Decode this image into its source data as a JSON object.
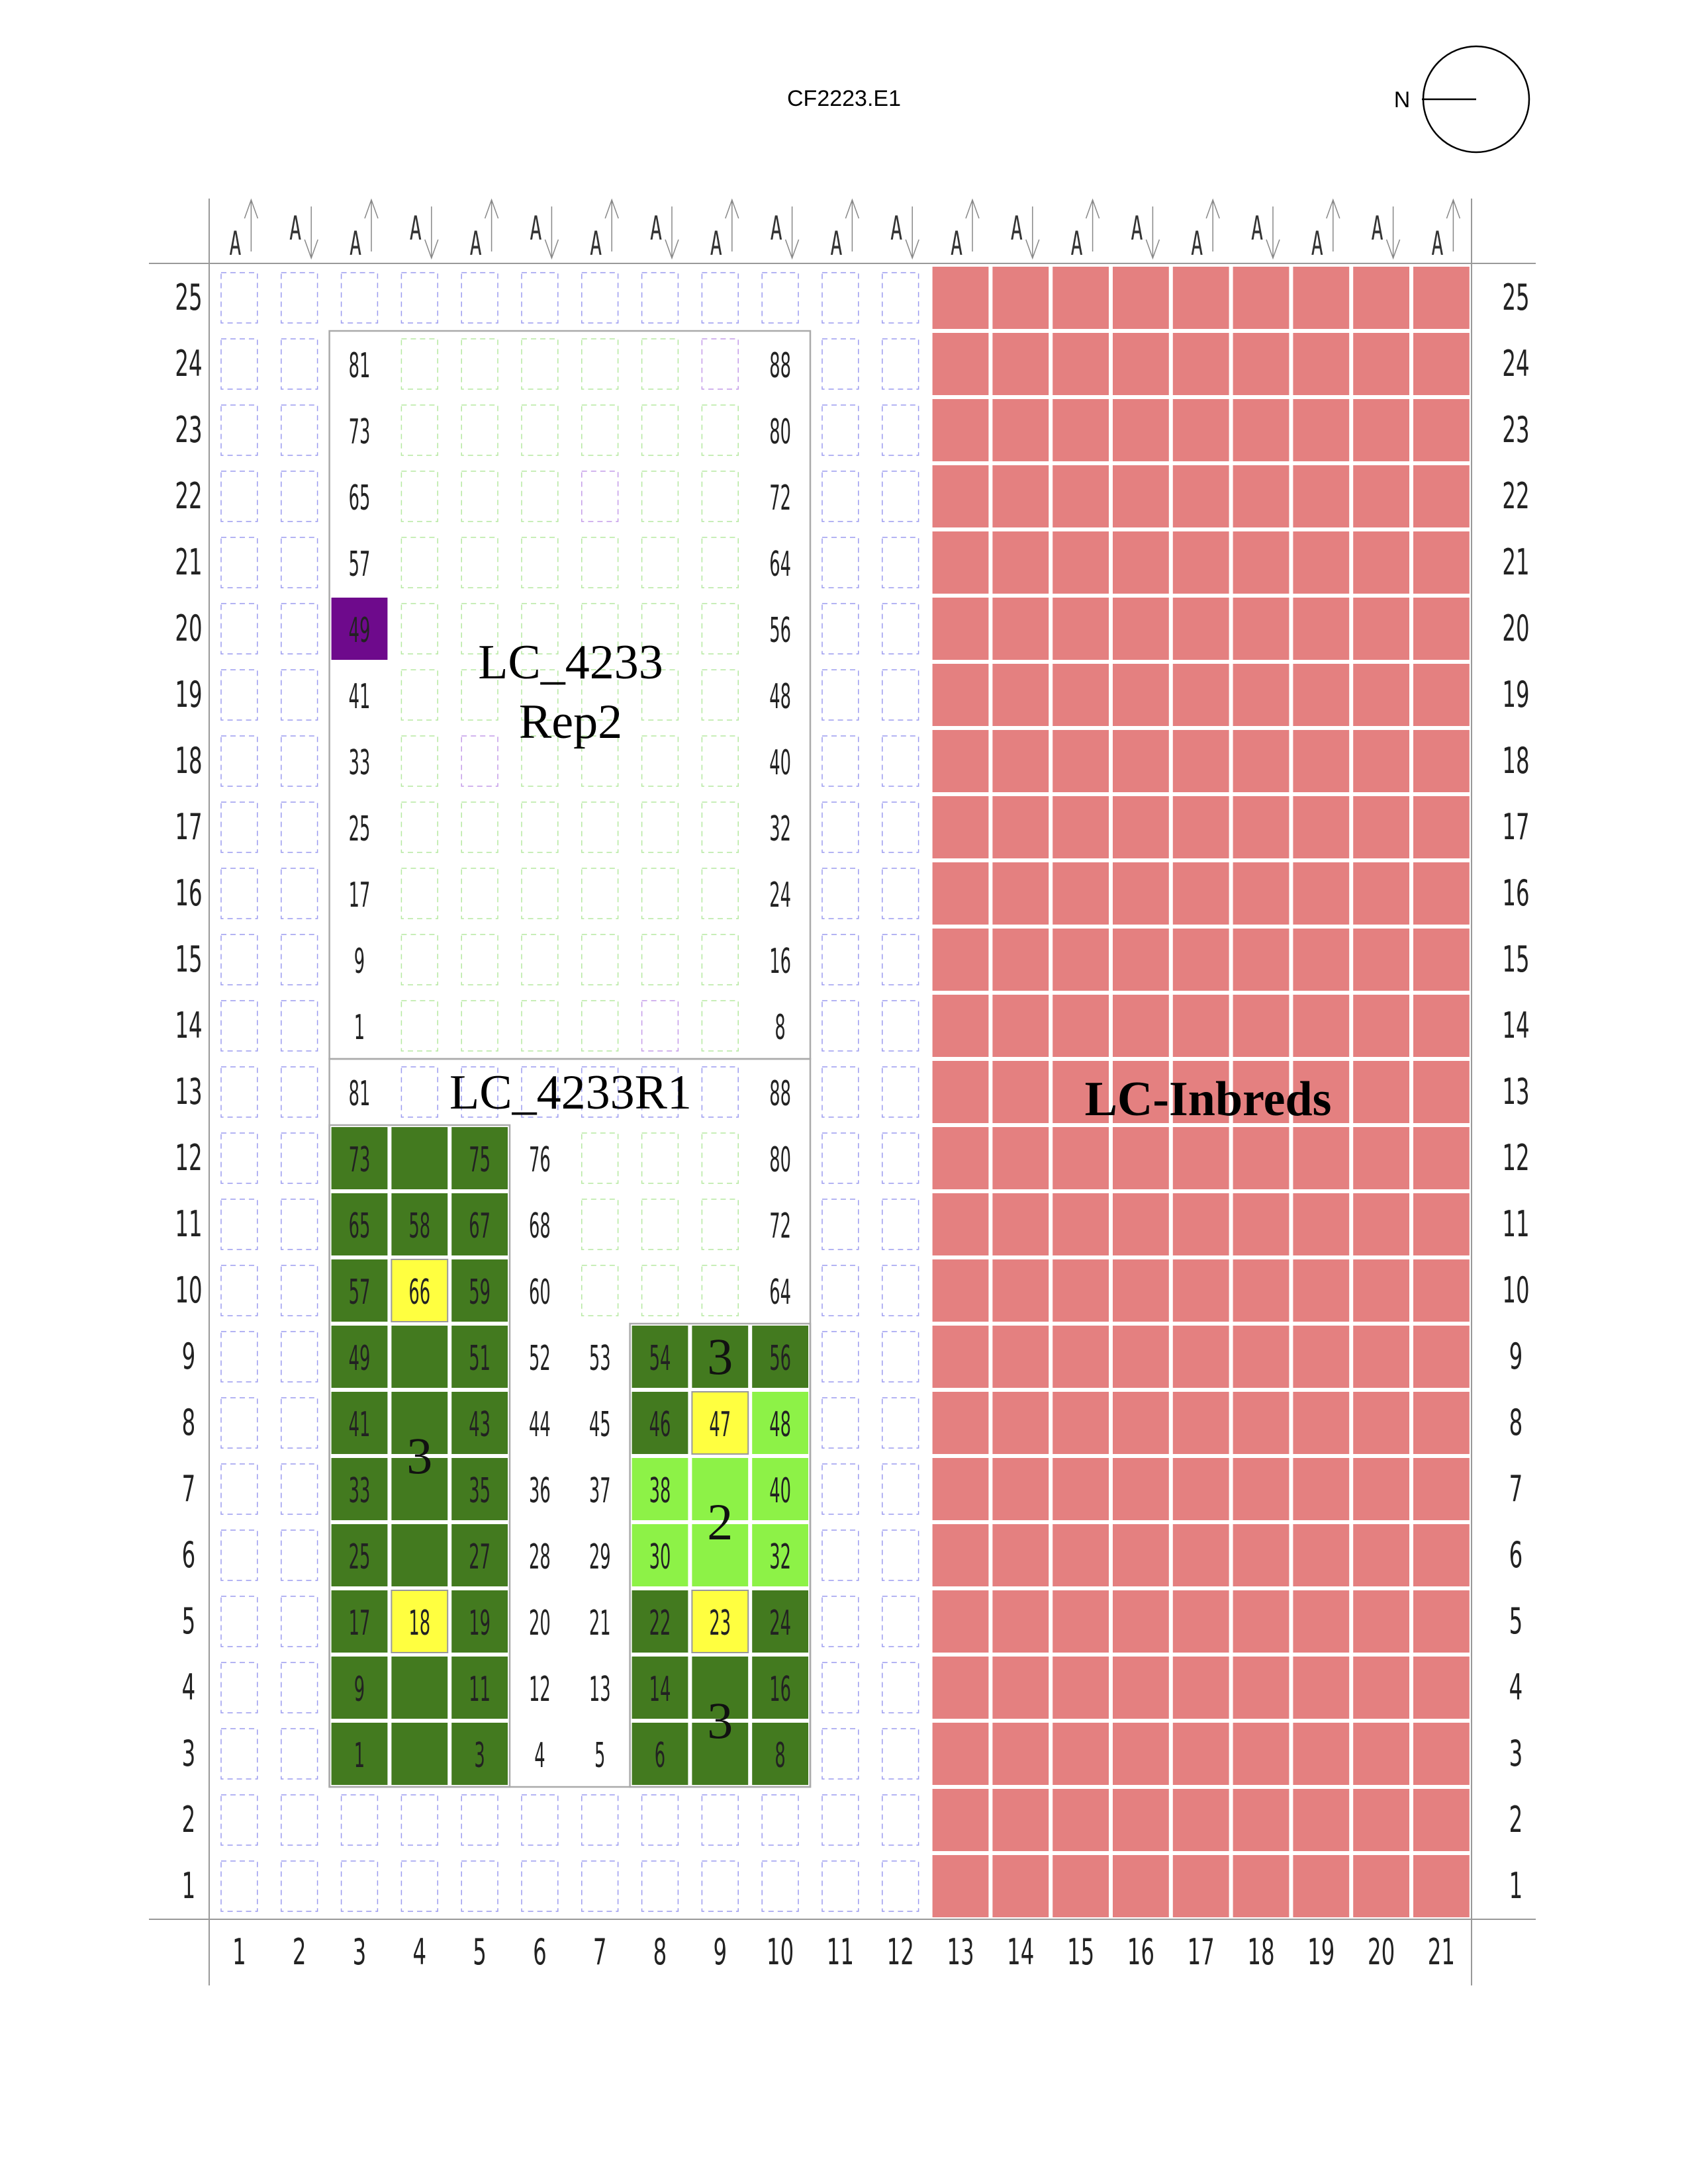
{
  "title": "CF2223.E1",
  "compass": {
    "label": "N"
  },
  "grid": {
    "cols": 21,
    "rows": 25,
    "row_labels": [
      "1",
      "2",
      "3",
      "4",
      "5",
      "6",
      "7",
      "8",
      "9",
      "10",
      "11",
      "12",
      "13",
      "14",
      "15",
      "16",
      "17",
      "18",
      "19",
      "20",
      "21",
      "22",
      "23",
      "24",
      "25"
    ],
    "col_labels": [
      "1",
      "2",
      "3",
      "4",
      "5",
      "6",
      "7",
      "8",
      "9",
      "10",
      "11",
      "12",
      "13",
      "14",
      "15",
      "16",
      "17",
      "18",
      "19",
      "20",
      "21"
    ]
  },
  "alley_marker": "A",
  "colors": {
    "inbreds": "#e48080",
    "dark_green": "#437a1f",
    "light_green": "#8df247",
    "yellow": "#ffff40",
    "purple": "#6e0a8c",
    "border_dash_blue": "#9b9bef",
    "border_dash_green": "#b5e8a0",
    "border_dash_purple": "#c49be8"
  },
  "blocks": {
    "rep2_label": [
      "LC_4233",
      "Rep2"
    ],
    "rep1_label": "LC_4233R1",
    "inbreds_label": "LC-Inbreds"
  },
  "cell_labels": [
    {
      "c": 3,
      "r": 24,
      "t": "81"
    },
    {
      "c": 10,
      "r": 24,
      "t": "88"
    },
    {
      "c": 3,
      "r": 23,
      "t": "73"
    },
    {
      "c": 10,
      "r": 23,
      "t": "80"
    },
    {
      "c": 3,
      "r": 22,
      "t": "65"
    },
    {
      "c": 10,
      "r": 22,
      "t": "72"
    },
    {
      "c": 3,
      "r": 21,
      "t": "57"
    },
    {
      "c": 10,
      "r": 21,
      "t": "64"
    },
    {
      "c": 3,
      "r": 20,
      "t": "49"
    },
    {
      "c": 10,
      "r": 20,
      "t": "56"
    },
    {
      "c": 3,
      "r": 19,
      "t": "41"
    },
    {
      "c": 10,
      "r": 19,
      "t": "48"
    },
    {
      "c": 3,
      "r": 18,
      "t": "33"
    },
    {
      "c": 10,
      "r": 18,
      "t": "40"
    },
    {
      "c": 3,
      "r": 17,
      "t": "25"
    },
    {
      "c": 10,
      "r": 17,
      "t": "32"
    },
    {
      "c": 3,
      "r": 16,
      "t": "17"
    },
    {
      "c": 10,
      "r": 16,
      "t": "24"
    },
    {
      "c": 3,
      "r": 15,
      "t": "9"
    },
    {
      "c": 10,
      "r": 15,
      "t": "16"
    },
    {
      "c": 3,
      "r": 14,
      "t": "1"
    },
    {
      "c": 10,
      "r": 14,
      "t": "8"
    },
    {
      "c": 3,
      "r": 13,
      "t": "81"
    },
    {
      "c": 10,
      "r": 13,
      "t": "88"
    },
    {
      "c": 3,
      "r": 12,
      "t": "73"
    },
    {
      "c": 5,
      "r": 12,
      "t": "75"
    },
    {
      "c": 6,
      "r": 12,
      "t": "76"
    },
    {
      "c": 10,
      "r": 12,
      "t": "80"
    },
    {
      "c": 3,
      "r": 11,
      "t": "65"
    },
    {
      "c": 4,
      "r": 11,
      "t": "58"
    },
    {
      "c": 5,
      "r": 11,
      "t": "67"
    },
    {
      "c": 6,
      "r": 11,
      "t": "68"
    },
    {
      "c": 10,
      "r": 11,
      "t": "72"
    },
    {
      "c": 3,
      "r": 10,
      "t": "57"
    },
    {
      "c": 4,
      "r": 10,
      "t": "66"
    },
    {
      "c": 5,
      "r": 10,
      "t": "59"
    },
    {
      "c": 6,
      "r": 10,
      "t": "60"
    },
    {
      "c": 10,
      "r": 10,
      "t": "64"
    },
    {
      "c": 3,
      "r": 9,
      "t": "49"
    },
    {
      "c": 5,
      "r": 9,
      "t": "51"
    },
    {
      "c": 6,
      "r": 9,
      "t": "52"
    },
    {
      "c": 7,
      "r": 9,
      "t": "53"
    },
    {
      "c": 8,
      "r": 9,
      "t": "54"
    },
    {
      "c": 10,
      "r": 9,
      "t": "56"
    },
    {
      "c": 3,
      "r": 8,
      "t": "41"
    },
    {
      "c": 5,
      "r": 8,
      "t": "43"
    },
    {
      "c": 6,
      "r": 8,
      "t": "44"
    },
    {
      "c": 7,
      "r": 8,
      "t": "45"
    },
    {
      "c": 8,
      "r": 8,
      "t": "46"
    },
    {
      "c": 9,
      "r": 8,
      "t": "47"
    },
    {
      "c": 10,
      "r": 8,
      "t": "48"
    },
    {
      "c": 3,
      "r": 7,
      "t": "33"
    },
    {
      "c": 5,
      "r": 7,
      "t": "35"
    },
    {
      "c": 6,
      "r": 7,
      "t": "36"
    },
    {
      "c": 7,
      "r": 7,
      "t": "37"
    },
    {
      "c": 8,
      "r": 7,
      "t": "38"
    },
    {
      "c": 10,
      "r": 7,
      "t": "40"
    },
    {
      "c": 3,
      "r": 6,
      "t": "25"
    },
    {
      "c": 5,
      "r": 6,
      "t": "27"
    },
    {
      "c": 6,
      "r": 6,
      "t": "28"
    },
    {
      "c": 7,
      "r": 6,
      "t": "29"
    },
    {
      "c": 8,
      "r": 6,
      "t": "30"
    },
    {
      "c": 10,
      "r": 6,
      "t": "32"
    },
    {
      "c": 3,
      "r": 5,
      "t": "17"
    },
    {
      "c": 4,
      "r": 5,
      "t": "18"
    },
    {
      "c": 5,
      "r": 5,
      "t": "19"
    },
    {
      "c": 6,
      "r": 5,
      "t": "20"
    },
    {
      "c": 7,
      "r": 5,
      "t": "21"
    },
    {
      "c": 8,
      "r": 5,
      "t": "22"
    },
    {
      "c": 9,
      "r": 5,
      "t": "23"
    },
    {
      "c": 10,
      "r": 5,
      "t": "24"
    },
    {
      "c": 3,
      "r": 4,
      "t": "9"
    },
    {
      "c": 5,
      "r": 4,
      "t": "11"
    },
    {
      "c": 6,
      "r": 4,
      "t": "12"
    },
    {
      "c": 7,
      "r": 4,
      "t": "13"
    },
    {
      "c": 8,
      "r": 4,
      "t": "14"
    },
    {
      "c": 10,
      "r": 4,
      "t": "16"
    },
    {
      "c": 3,
      "r": 3,
      "t": "1"
    },
    {
      "c": 5,
      "r": 3,
      "t": "3"
    },
    {
      "c": 6,
      "r": 3,
      "t": "4"
    },
    {
      "c": 7,
      "r": 3,
      "t": "5"
    },
    {
      "c": 8,
      "r": 3,
      "t": "6"
    },
    {
      "c": 10,
      "r": 3,
      "t": "8"
    }
  ],
  "group_labels": [
    {
      "c": 4,
      "r": 7.5,
      "t": "3"
    },
    {
      "c": 9,
      "r": 9,
      "t": "3"
    },
    {
      "c": 9,
      "r": 6.5,
      "t": "2"
    },
    {
      "c": 9,
      "r": 3.5,
      "t": "3"
    }
  ],
  "fills": {
    "purple": [
      [
        3,
        20
      ]
    ],
    "dark_green": [
      [
        3,
        12
      ],
      [
        4,
        12
      ],
      [
        5,
        12
      ],
      [
        3,
        11
      ],
      [
        4,
        11
      ],
      [
        5,
        11
      ],
      [
        3,
        10
      ],
      [
        5,
        10
      ],
      [
        3,
        9
      ],
      [
        4,
        9
      ],
      [
        5,
        9
      ],
      [
        3,
        8
      ],
      [
        4,
        8
      ],
      [
        5,
        8
      ],
      [
        3,
        7
      ],
      [
        4,
        7
      ],
      [
        5,
        7
      ],
      [
        3,
        6
      ],
      [
        4,
        6
      ],
      [
        5,
        6
      ],
      [
        3,
        5
      ],
      [
        5,
        5
      ],
      [
        3,
        4
      ],
      [
        4,
        4
      ],
      [
        5,
        4
      ],
      [
        3,
        3
      ],
      [
        4,
        3
      ],
      [
        5,
        3
      ],
      [
        8,
        9
      ],
      [
        9,
        9
      ],
      [
        10,
        9
      ],
      [
        8,
        8
      ],
      [
        8,
        5
      ],
      [
        10,
        5
      ],
      [
        8,
        4
      ],
      [
        9,
        4
      ],
      [
        10,
        4
      ],
      [
        8,
        3
      ],
      [
        9,
        3
      ],
      [
        10,
        3
      ]
    ],
    "light_green": [
      [
        10,
        8
      ],
      [
        8,
        7
      ],
      [
        9,
        7
      ],
      [
        10,
        7
      ],
      [
        8,
        6
      ],
      [
        9,
        6
      ],
      [
        10,
        6
      ]
    ],
    "yellow": [
      [
        4,
        10
      ],
      [
        4,
        5
      ],
      [
        9,
        8
      ],
      [
        9,
        5
      ]
    ]
  }
}
